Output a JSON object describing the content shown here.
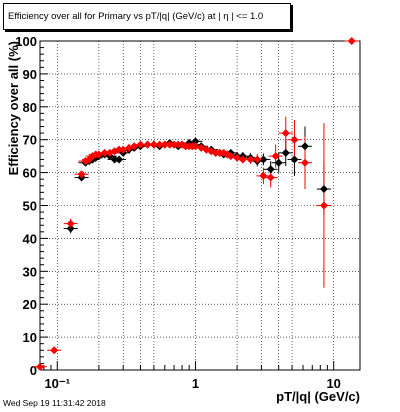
{
  "title": "Efficiency over all for Primary vs pT/|q| (GeV/c) at |  η | <= 1.0",
  "timestamp": "Wed Sep 19 11:31:42 2018",
  "chart_data": {
    "type": "scatter",
    "title": "Efficiency over all for Primary vs pT/|q| (GeV/c) at |  η | <= 1.0",
    "xlabel": "pT/|q| (GeV/c)",
    "ylabel": "Efficiency over all (%)",
    "xscale": "log",
    "xlim": [
      0.075,
      15.5
    ],
    "ylim": [
      0,
      100
    ],
    "grid": true,
    "x_tick_labels": [
      {
        "v": 0.1,
        "t": "10⁻¹"
      },
      {
        "v": 1,
        "t": "1"
      },
      {
        "v": 10,
        "t": "10"
      }
    ],
    "y_tick_labels": [
      0,
      10,
      20,
      30,
      40,
      50,
      60,
      70,
      80,
      90,
      100
    ],
    "colors": {
      "series1": "#000000",
      "series2": "#ff0000"
    },
    "series": [
      {
        "color": "#000000",
        "points": [
          [
            0.125,
            43,
            1.5
          ],
          [
            0.15,
            58.5,
            1.0
          ],
          [
            0.16,
            63,
            0.8
          ],
          [
            0.17,
            63.5,
            0.7
          ],
          [
            0.18,
            64,
            0.6
          ],
          [
            0.19,
            64.5,
            0.6
          ],
          [
            0.2,
            65,
            0.5
          ],
          [
            0.22,
            65.5,
            0.5
          ],
          [
            0.24,
            65,
            0.5
          ],
          [
            0.26,
            64,
            0.5
          ],
          [
            0.28,
            64,
            0.5
          ],
          [
            0.3,
            66,
            0.5
          ],
          [
            0.33,
            67,
            0.5
          ],
          [
            0.36,
            67.5,
            0.5
          ],
          [
            0.4,
            68,
            0.5
          ],
          [
            0.45,
            68.5,
            0.5
          ],
          [
            0.5,
            68.5,
            0.5
          ],
          [
            0.55,
            68,
            0.5
          ],
          [
            0.6,
            68.5,
            0.5
          ],
          [
            0.65,
            69,
            0.5
          ],
          [
            0.7,
            68.5,
            0.5
          ],
          [
            0.75,
            68,
            0.5
          ],
          [
            0.8,
            68.5,
            0.5
          ],
          [
            0.85,
            68,
            0.5
          ],
          [
            0.9,
            69,
            0.5
          ],
          [
            0.95,
            68.5,
            0.5
          ],
          [
            1.0,
            69.5,
            0.6
          ],
          [
            1.1,
            68,
            0.6
          ],
          [
            1.2,
            67,
            0.7
          ],
          [
            1.3,
            67,
            0.7
          ],
          [
            1.4,
            66,
            0.8
          ],
          [
            1.5,
            66,
            0.8
          ],
          [
            1.6,
            65.5,
            0.9
          ],
          [
            1.7,
            65.5,
            0.9
          ],
          [
            1.8,
            66,
            1.0
          ],
          [
            2.0,
            65,
            1.0
          ],
          [
            2.2,
            65,
            1.2
          ],
          [
            2.5,
            64.5,
            1.4
          ],
          [
            2.8,
            63.5,
            1.6
          ],
          [
            3.1,
            64,
            1.8
          ],
          [
            3.5,
            61,
            2.5
          ],
          [
            4.0,
            63,
            3.0
          ],
          [
            4.5,
            66,
            4.0
          ],
          [
            5.2,
            64,
            5.0
          ],
          [
            6.2,
            68,
            6.0
          ],
          [
            8.5,
            55,
            8.0
          ]
        ]
      },
      {
        "color": "#ff0000",
        "points": [
          [
            0.075,
            1,
            0.5
          ],
          [
            0.095,
            6,
            1.0
          ],
          [
            0.125,
            44.5,
            1.5
          ],
          [
            0.15,
            59.5,
            1.0
          ],
          [
            0.16,
            63.5,
            0.8
          ],
          [
            0.17,
            64,
            0.7
          ],
          [
            0.18,
            65,
            0.6
          ],
          [
            0.19,
            65.5,
            0.6
          ],
          [
            0.2,
            65.5,
            0.5
          ],
          [
            0.22,
            66,
            0.5
          ],
          [
            0.24,
            66,
            0.5
          ],
          [
            0.26,
            66.5,
            0.5
          ],
          [
            0.28,
            67,
            0.5
          ],
          [
            0.3,
            67,
            0.5
          ],
          [
            0.33,
            67.5,
            0.5
          ],
          [
            0.36,
            68,
            0.5
          ],
          [
            0.4,
            68.5,
            0.5
          ],
          [
            0.45,
            68.5,
            0.5
          ],
          [
            0.5,
            68.5,
            0.5
          ],
          [
            0.55,
            68.5,
            0.5
          ],
          [
            0.6,
            68.5,
            0.5
          ],
          [
            0.65,
            68.5,
            0.5
          ],
          [
            0.7,
            68.5,
            0.5
          ],
          [
            0.75,
            68.5,
            0.5
          ],
          [
            0.8,
            68.5,
            0.5
          ],
          [
            0.85,
            68,
            0.5
          ],
          [
            0.9,
            68,
            0.5
          ],
          [
            0.95,
            68,
            0.5
          ],
          [
            1.0,
            68,
            0.6
          ],
          [
            1.1,
            67.5,
            0.6
          ],
          [
            1.2,
            67,
            0.7
          ],
          [
            1.3,
            66.5,
            0.7
          ],
          [
            1.4,
            66,
            0.8
          ],
          [
            1.5,
            66,
            0.8
          ],
          [
            1.6,
            66,
            0.9
          ],
          [
            1.7,
            65.5,
            0.9
          ],
          [
            1.8,
            65,
            1.0
          ],
          [
            2.0,
            64.5,
            1.0
          ],
          [
            2.2,
            64,
            1.2
          ],
          [
            2.5,
            64,
            1.4
          ],
          [
            2.8,
            64,
            1.6
          ],
          [
            3.1,
            59,
            2.5
          ],
          [
            3.5,
            58.5,
            3.0
          ],
          [
            3.8,
            65,
            3.5
          ],
          [
            4.5,
            72,
            5.0
          ],
          [
            5.2,
            70,
            6.0
          ],
          [
            6.2,
            63,
            8.0
          ],
          [
            8.5,
            50,
            25.0
          ],
          [
            13.5,
            100,
            0.5
          ]
        ]
      }
    ]
  }
}
